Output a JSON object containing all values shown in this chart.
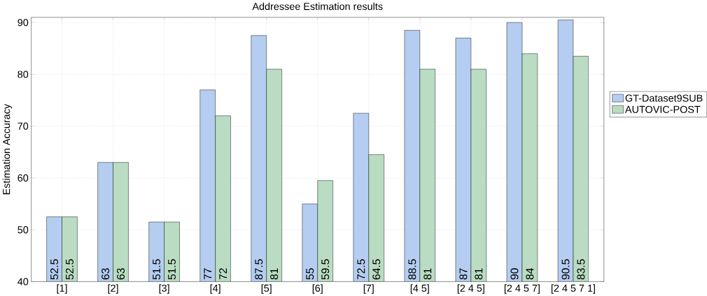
{
  "chart_data": {
    "type": "bar",
    "title": "Addressee Estimation results",
    "ylabel": "Estimation Accuracy",
    "categories": [
      "[1]",
      "[2]",
      "[3]",
      "[4]",
      "[5]",
      "[6]",
      "[7]",
      "[4 5]",
      "[2 4 5]",
      "[2 4 5 7]",
      "[2 4 5 7 1]"
    ],
    "series": [
      {
        "name": "GT-Dataset9SUB",
        "color": "#b4cdf0",
        "values": [
          52.5,
          63,
          51.5,
          77,
          87.5,
          55,
          72.5,
          88.5,
          87,
          90,
          90.5
        ]
      },
      {
        "name": "AUTOVIC-POST",
        "color": "#b9dcc2",
        "values": [
          52.5,
          63,
          51.5,
          72,
          81,
          59.5,
          64.5,
          81,
          81,
          84,
          83.5
        ]
      }
    ],
    "ylim": [
      40,
      91
    ],
    "yticks": [
      40,
      50,
      60,
      70,
      80,
      90
    ],
    "grid": true,
    "legend": "right",
    "data_labels": true
  }
}
